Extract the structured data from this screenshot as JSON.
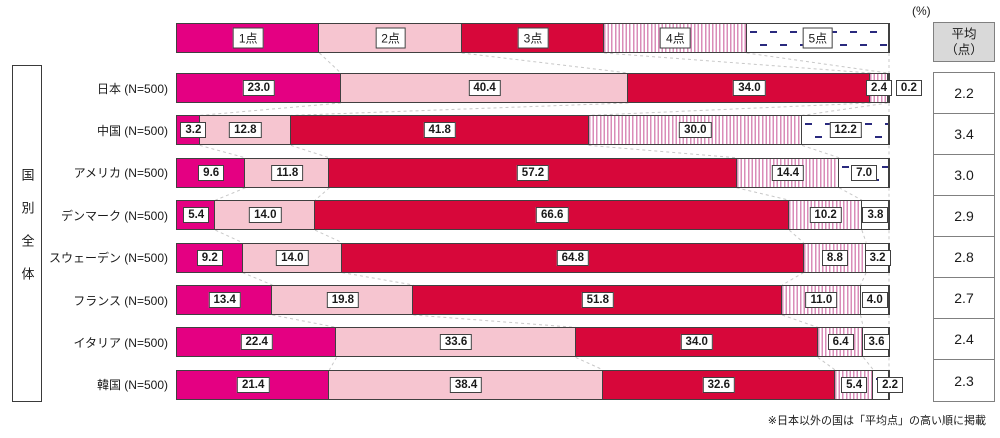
{
  "unit_label": "(%)",
  "avg_header": {
    "line1": "平均",
    "line2": "（点）"
  },
  "group_label": "国別全体",
  "note": "※日本以外の国は「平均点」の高い順に掲載",
  "colors": {
    "score1": "#e40082",
    "score2": "#f6c5d0",
    "score3": "#d7073a",
    "score4_stripe": "#da8cb8",
    "score5_dash": "#2a2a7e",
    "bar_border": "#404040",
    "table_border": "#808080",
    "header_bg": "#d9d9d9",
    "connector": "#c8c8c8"
  },
  "chart_data": {
    "type": "bar",
    "stacked": true,
    "orientation": "horizontal",
    "unit": "%",
    "xlim": [
      0,
      100
    ],
    "legend": [
      "1点",
      "2点",
      "3点",
      "4点",
      "5点"
    ],
    "legend_position": "top",
    "categories": [
      "日本 (N=500)",
      "中国 (N=500)",
      "アメリカ (N=500)",
      "デンマーク (N=500)",
      "スウェーデン (N=500)",
      "フランス (N=500)",
      "イタリア (N=500)",
      "韓国 (N=500)"
    ],
    "series": [
      {
        "name": "1点",
        "values": [
          23.0,
          3.2,
          9.6,
          5.4,
          9.2,
          13.4,
          22.4,
          21.4
        ]
      },
      {
        "name": "2点",
        "values": [
          40.4,
          12.8,
          11.8,
          14.0,
          14.0,
          19.8,
          33.6,
          38.4
        ]
      },
      {
        "name": "3点",
        "values": [
          34.0,
          41.8,
          57.2,
          66.6,
          64.8,
          51.8,
          34.0,
          32.6
        ]
      },
      {
        "name": "4点",
        "values": [
          2.4,
          30.0,
          14.4,
          10.2,
          8.8,
          11.0,
          6.4,
          5.4
        ]
      },
      {
        "name": "5点",
        "values": [
          0.2,
          12.2,
          7.0,
          3.8,
          3.2,
          4.0,
          3.6,
          2.2
        ]
      }
    ],
    "averages": [
      2.2,
      3.4,
      3.0,
      2.9,
      2.8,
      2.7,
      2.4,
      2.3
    ],
    "averages_label": "平均（点）"
  }
}
